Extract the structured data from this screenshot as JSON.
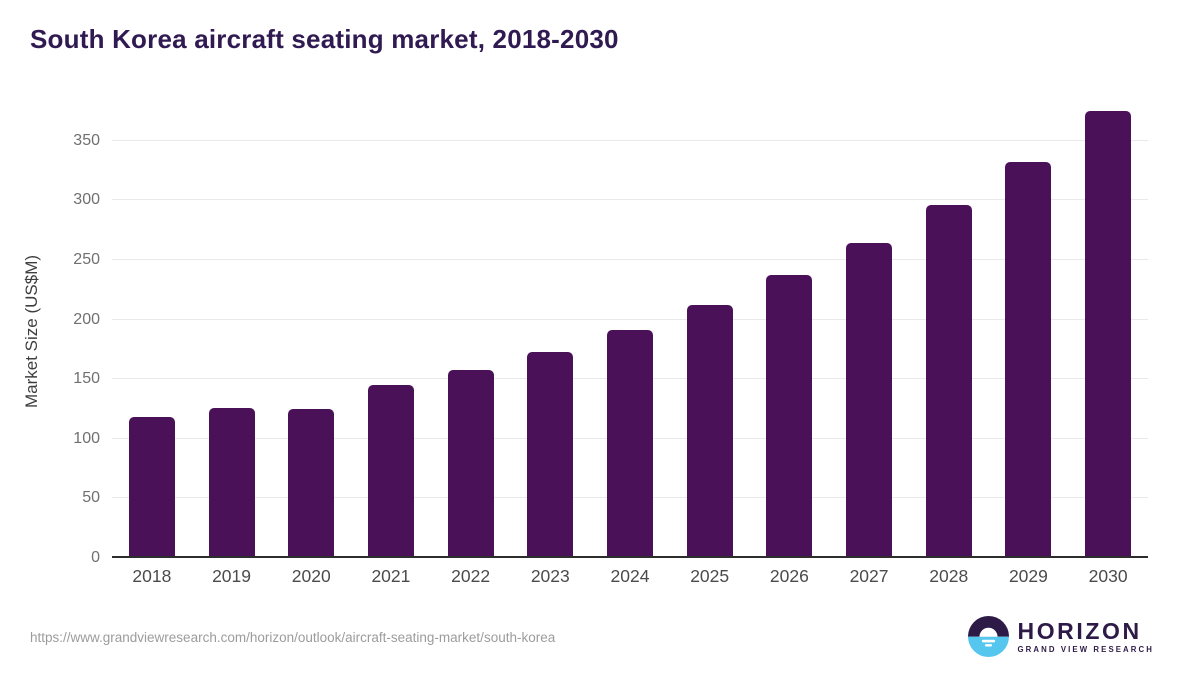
{
  "header": {
    "title": "South Korea aircraft seating market, 2018-2030"
  },
  "footer": {
    "source_url": "https://www.grandviewresearch.com/horizon/outlook/aircraft-seating-market/south-korea",
    "logo": {
      "icon": "horizon-sunrise-icon",
      "brand": "HORIZON",
      "tagline": "GRAND VIEW RESEARCH"
    }
  },
  "colors": {
    "bar": "#4a1158",
    "title": "#301a52",
    "grid": "#e9e9e9",
    "axis": "#2d2d2d",
    "ytick_text": "#707070",
    "xtick_text": "#4b4b4b",
    "url_text": "#9c9c9c",
    "logo_purple": "#2e1a47",
    "logo_blue": "#55c6ee"
  },
  "chart_data": {
    "type": "bar",
    "title": "South Korea aircraft seating market, 2018-2030",
    "categories": [
      "2018",
      "2019",
      "2020",
      "2021",
      "2022",
      "2023",
      "2024",
      "2025",
      "2026",
      "2027",
      "2028",
      "2029",
      "2030"
    ],
    "values": [
      118,
      126,
      125,
      145,
      158,
      173,
      191,
      212,
      237,
      264,
      296,
      332,
      375
    ],
    "xlabel": "",
    "ylabel": "Market Size (US$M)",
    "ylim": [
      0,
      380
    ],
    "yticks": [
      0,
      50,
      100,
      150,
      200,
      250,
      300,
      350
    ],
    "grid": true,
    "legend": false,
    "bar_color": "#4a1158"
  }
}
